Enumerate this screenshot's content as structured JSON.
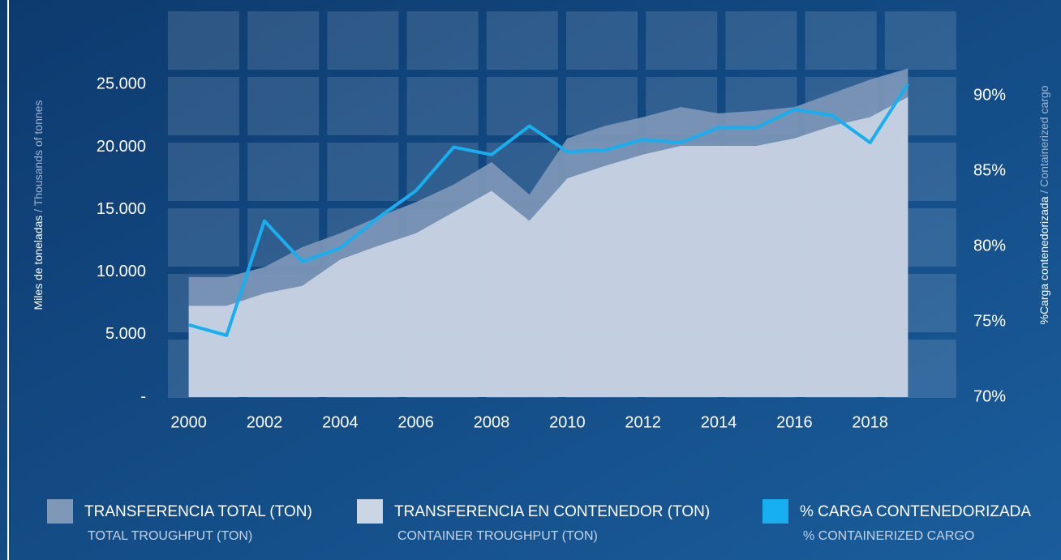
{
  "chart_data": {
    "type": "area-line",
    "x": [
      2000,
      2001,
      2002,
      2003,
      2004,
      2005,
      2006,
      2007,
      2008,
      2009,
      2010,
      2011,
      2012,
      2013,
      2014,
      2015,
      2016,
      2017,
      2018,
      2019
    ],
    "xlim": [
      1999.3,
      2020.3
    ],
    "xticks": [
      2000,
      2002,
      2004,
      2006,
      2008,
      2010,
      2012,
      2014,
      2016,
      2018
    ],
    "ylim": [
      0,
      30600
    ],
    "yticks": [
      {
        "value": 0,
        "label": "-"
      },
      {
        "value": 5000,
        "label": "5.000"
      },
      {
        "value": 10000,
        "label": "10.000"
      },
      {
        "value": 15000,
        "label": "15.000"
      },
      {
        "value": 20000,
        "label": "20.000"
      },
      {
        "value": 25000,
        "label": "25.000"
      }
    ],
    "y2lim": [
      70,
      95.4
    ],
    "y2ticks": [
      {
        "value": 70,
        "label": "70%"
      },
      {
        "value": 75,
        "label": "75%"
      },
      {
        "value": 80,
        "label": "80%"
      },
      {
        "value": 85,
        "label": "85%"
      },
      {
        "value": 90,
        "label": "90%"
      }
    ],
    "y_label": {
      "main": "Miles de toneladas",
      "secondary": " / Thousands of tonnes"
    },
    "y2_label": {
      "main": "%Carga contenedorizada",
      "secondary": " / Containerized cargo"
    },
    "series": [
      {
        "name": "TRANSFERENCIA TOTAL (TON)",
        "subtitle": "TOTAL TROUGHPUT (TON)",
        "color": "#7f98b8",
        "kind": "area",
        "values": [
          9600,
          9600,
          10400,
          12000,
          13100,
          14400,
          15600,
          17000,
          18800,
          16200,
          20700,
          21700,
          22400,
          23200,
          22700,
          22900,
          23200,
          24300,
          25400,
          26300
        ]
      },
      {
        "name": "TRANSFERENCIA EN CONTENEDOR (TON)",
        "subtitle": "CONTAINER TROUGHPUT (TON)",
        "color": "#cbd6e4",
        "kind": "area",
        "values": [
          7300,
          7300,
          8300,
          8900,
          11000,
          12100,
          13100,
          14800,
          16500,
          14100,
          17500,
          18500,
          19400,
          20100,
          20100,
          20100,
          20700,
          21700,
          22400,
          24000
        ]
      },
      {
        "name": "% CARGA CONTENEDORIZADA",
        "subtitle": "% CONTAINERIZED CARGO",
        "color": "#17aff0",
        "kind": "line",
        "axis": "y2",
        "values": [
          74.8,
          74.1,
          81.7,
          79.0,
          79.9,
          81.9,
          83.7,
          86.6,
          86.1,
          88.0,
          86.3,
          86.4,
          87.1,
          86.9,
          87.9,
          87.9,
          89.1,
          88.7,
          86.9,
          90.8
        ]
      }
    ]
  }
}
